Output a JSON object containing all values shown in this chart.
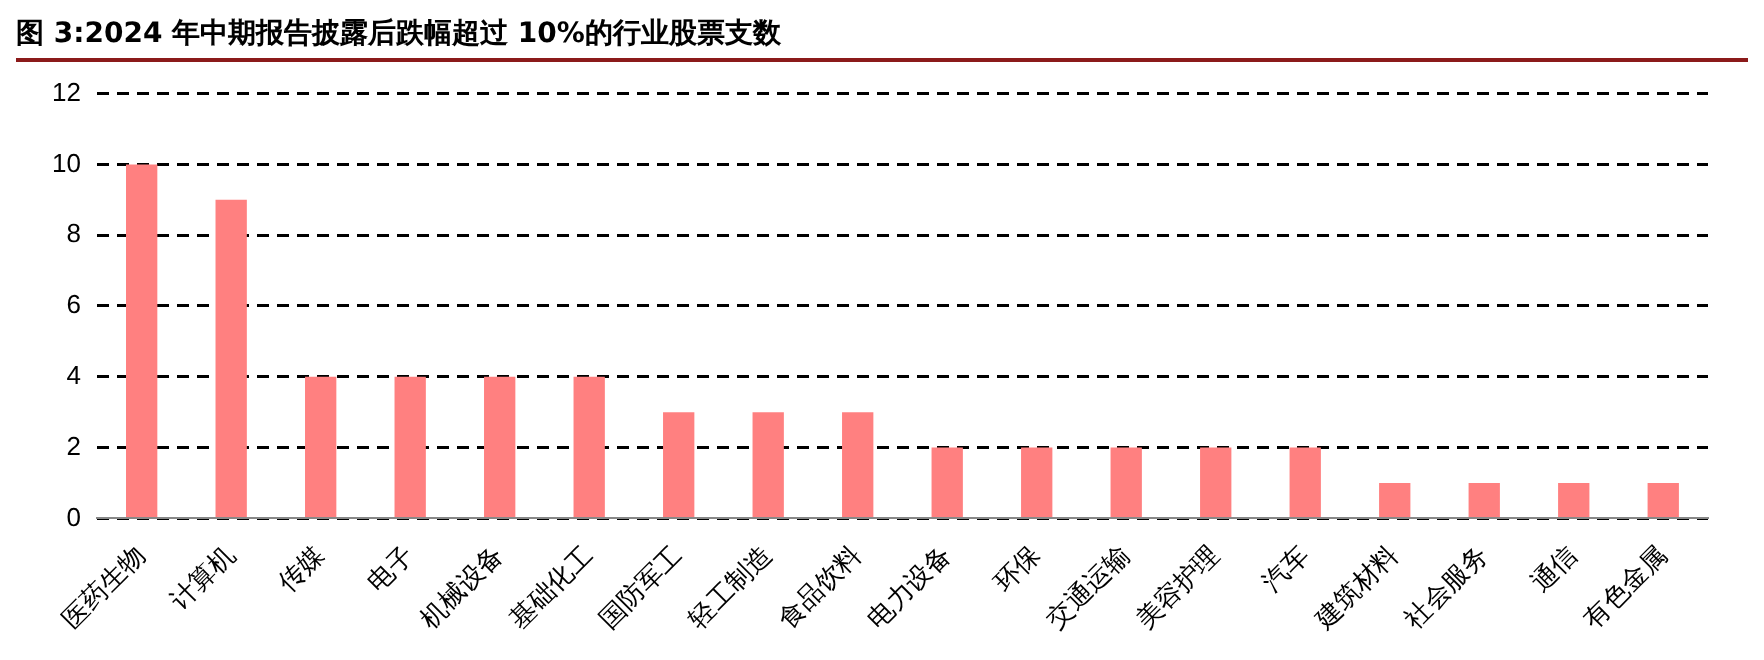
{
  "chart_data": {
    "type": "bar",
    "title": "图 3:2024 年中期报告披露后跌幅超过 10%的行业股票支数",
    "categories": [
      "医药生物",
      "计算机",
      "传媒",
      "电子",
      "机械设备",
      "基础化工",
      "国防军工",
      "轻工制造",
      "食品饮料",
      "电力设备",
      "环保",
      "交通运输",
      "美容护理",
      "汽车",
      "建筑材料",
      "社会服务",
      "通信",
      "有色金属"
    ],
    "values": [
      10,
      9,
      4,
      4,
      4,
      4,
      3,
      3,
      3,
      2,
      2,
      2,
      2,
      2,
      1,
      1,
      1,
      1
    ],
    "color": "#ff8080",
    "ylim": [
      0,
      12
    ],
    "yticks": [
      0,
      2,
      4,
      6,
      8,
      10,
      12
    ],
    "grid": "y",
    "legend": false
  }
}
